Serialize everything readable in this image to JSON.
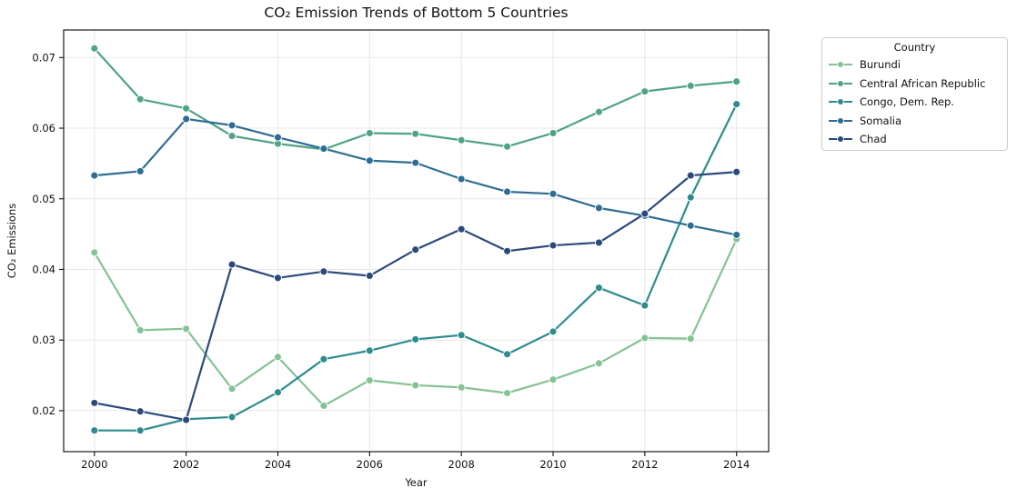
{
  "figure": {
    "background": "#ffffff"
  },
  "chart_data": {
    "type": "line",
    "title": "CO₂ Emission Trends of Bottom 5 Countries",
    "xlabel": "Year",
    "ylabel": "CO₂ Emissions",
    "grid": true,
    "legend": {
      "title": "Country",
      "position": "outside-right"
    },
    "x": [
      2000,
      2001,
      2002,
      2003,
      2004,
      2005,
      2006,
      2007,
      2008,
      2009,
      2010,
      2011,
      2012,
      2013,
      2014
    ],
    "x_ticks": [
      2000,
      2002,
      2004,
      2006,
      2008,
      2010,
      2012,
      2014
    ],
    "x_tick_labels": [
      "2000",
      "2002",
      "2004",
      "2006",
      "2008",
      "2010",
      "2012",
      "2014"
    ],
    "y_ticks": [
      0.02,
      0.03,
      0.04,
      0.05,
      0.06,
      0.07
    ],
    "y_tick_labels": [
      "0.02",
      "0.03",
      "0.04",
      "0.05",
      "0.06",
      "0.07"
    ],
    "xlim": [
      1999.33,
      2014.7
    ],
    "ylim": [
      0.0142,
      0.0739
    ],
    "series": [
      {
        "name": "Burundi",
        "color": "#85c295",
        "values": [
          0.0424,
          0.0314,
          0.0316,
          0.0231,
          0.0276,
          0.0207,
          0.0243,
          0.0236,
          0.0233,
          0.0225,
          0.0244,
          0.0267,
          0.0303,
          0.0302,
          0.0443
        ]
      },
      {
        "name": "Central African Republic",
        "color": "#4fa386",
        "values": [
          0.0713,
          0.0641,
          0.0628,
          0.0589,
          0.0578,
          0.057,
          0.0593,
          0.0592,
          0.0583,
          0.0574,
          0.0593,
          0.0623,
          0.0652,
          0.066,
          0.0666
        ]
      },
      {
        "name": "Congo, Dem. Rep.",
        "color": "#2e8c8e",
        "values": [
          0.0172,
          0.0172,
          0.0188,
          0.0191,
          0.0226,
          0.0273,
          0.0285,
          0.0301,
          0.0307,
          0.028,
          0.0312,
          0.0374,
          0.0349,
          0.0502,
          0.0634
        ]
      },
      {
        "name": "Somalia",
        "color": "#2e6d93",
        "values": [
          0.0533,
          0.0539,
          0.0613,
          0.0604,
          0.0587,
          0.0571,
          0.0554,
          0.0551,
          0.0528,
          0.051,
          0.0507,
          0.0487,
          0.0476,
          0.0462,
          0.0449
        ]
      },
      {
        "name": "Chad",
        "color": "#2b4a7c",
        "values": [
          0.0211,
          0.0199,
          0.0187,
          0.0407,
          0.0388,
          0.0397,
          0.0391,
          0.0428,
          0.0457,
          0.0426,
          0.0434,
          0.0438,
          0.0479,
          0.0533,
          0.0538
        ]
      }
    ]
  }
}
